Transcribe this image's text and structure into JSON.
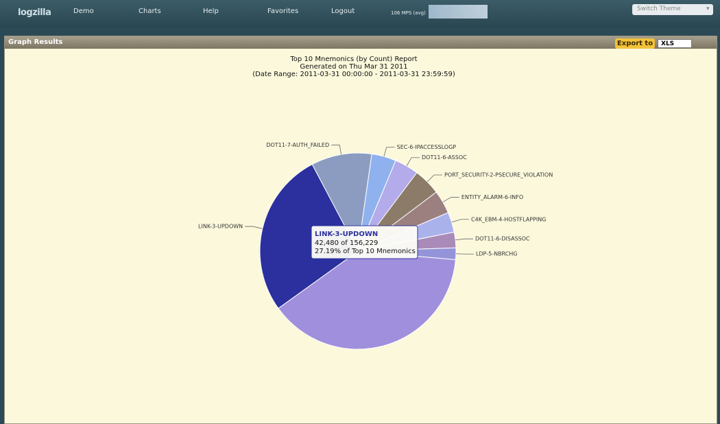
{
  "nav": {
    "logo": "logzilla",
    "items": [
      "Demo",
      "Charts",
      "Help",
      "Favorites",
      "Logout"
    ],
    "rate": "106 MPS (avg)",
    "theme": "Switch Theme"
  },
  "panel": {
    "title": "Graph Results",
    "export": "Export to",
    "format": "XLS"
  },
  "chart_data": {
    "type": "pie",
    "title": "Top 10 Mnemonics (by Count) Report",
    "subtitle": "Generated on Thu Mar 31 2011",
    "date_range": "(Date Range: 2011-03-31 00:00:00 - 2011-03-31 23:59:59)",
    "categories": [
      null,
      "LINK-3-UPDOWN",
      "DOT11-7-AUTH_FAILED",
      "SEC-6-IPACCESSLOGP",
      "DOT11-6-ASSOC",
      "PORT_SECURITY-2-PSECURE_VIOLATION",
      "ENTITY_ALARM-6-INFO",
      "C4K_EBM-4-HOSTFLAPPING",
      "DOT11-6-DISASSOC",
      "LDP-5-NBRCHG"
    ],
    "values": [
      60449,
      42480,
      15600,
      6300,
      6200,
      7000,
      6000,
      5200,
      4000,
      3000
    ],
    "colors": [
      "#a08fdc",
      "#2b309e",
      "#8c9cc0",
      "#8fb2ee",
      "#b3abea",
      "#8c7b68",
      "#9c8080",
      "#aab2ec",
      "#a98ab8",
      "#9494da"
    ],
    "tooltip": {
      "category": 1,
      "count": "42,480 of 156,229",
      "share": "27.19% of Top 10 Mnemonics"
    }
  }
}
